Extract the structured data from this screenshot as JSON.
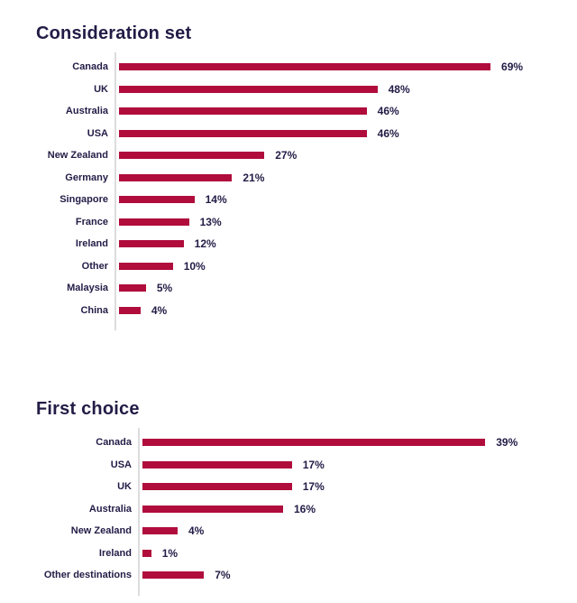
{
  "colors": {
    "bar": "#B00C3C",
    "text": "#221C46",
    "axis": "#DCDCDC",
    "background": "#FFFFFF"
  },
  "chart_data": [
    {
      "type": "bar",
      "orientation": "horizontal",
      "title": "Consideration set",
      "categories": [
        "Canada",
        "UK",
        "Australia",
        "USA",
        "New Zealand",
        "Germany",
        "Singapore",
        "France",
        "Ireland",
        "Other",
        "Malaysia",
        "China"
      ],
      "values": [
        69,
        48,
        46,
        46,
        27,
        21,
        14,
        13,
        12,
        10,
        5,
        4
      ],
      "value_labels": [
        "69%",
        "48%",
        "46%",
        "46%",
        "27%",
        "21%",
        "14%",
        "13%",
        "12%",
        "10%",
        "5%",
        "4%"
      ],
      "unit": "%",
      "xlim": [
        0,
        70
      ],
      "grid": false,
      "legend": false
    },
    {
      "type": "bar",
      "orientation": "horizontal",
      "title": "First choice",
      "categories": [
        "Canada",
        "USA",
        "UK",
        "Australia",
        "New Zealand",
        "Ireland",
        "Other destinations"
      ],
      "values": [
        39,
        17,
        17,
        16,
        4,
        1,
        7
      ],
      "value_labels": [
        "39%",
        "17%",
        "17%",
        "16%",
        "4%",
        "1%",
        "7%"
      ],
      "unit": "%",
      "xlim": [
        0,
        40
      ],
      "grid": false,
      "legend": false
    }
  ]
}
